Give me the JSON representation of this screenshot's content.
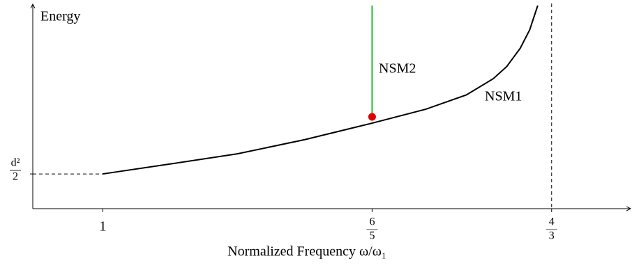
{
  "chart_data": {
    "type": "line",
    "xlabel": "Normalized Frequency ω/ω₁",
    "ylabel": "Energy",
    "xlim": [
      0.948,
      1.393
    ],
    "ylim": [
      0,
      1
    ],
    "xticks": [
      1,
      {
        "value": 1.2,
        "label": "6/5"
      },
      {
        "value": 1.3333,
        "label": "4/3"
      }
    ],
    "yticks": [
      {
        "value": 0.171,
        "label": "d²/2"
      }
    ],
    "series": [
      {
        "name": "NSM1",
        "color": "#000000",
        "x": [
          1.0,
          1.05,
          1.1,
          1.15,
          1.2,
          1.24,
          1.27,
          1.29,
          1.3,
          1.31,
          1.317,
          1.323
        ],
        "values": [
          0.171,
          0.22,
          0.27,
          0.34,
          0.421,
          0.49,
          0.56,
          0.64,
          0.7,
          0.79,
          0.88,
          1.0
        ]
      },
      {
        "name": "NSM2",
        "color": "#22bb33",
        "x": [
          1.2,
          1.2
        ],
        "values": [
          0.452,
          1.0
        ]
      }
    ],
    "marker": {
      "x": 1.2,
      "y": 0.452,
      "color": "#e00000"
    },
    "vlines": [
      1.3333
    ]
  }
}
